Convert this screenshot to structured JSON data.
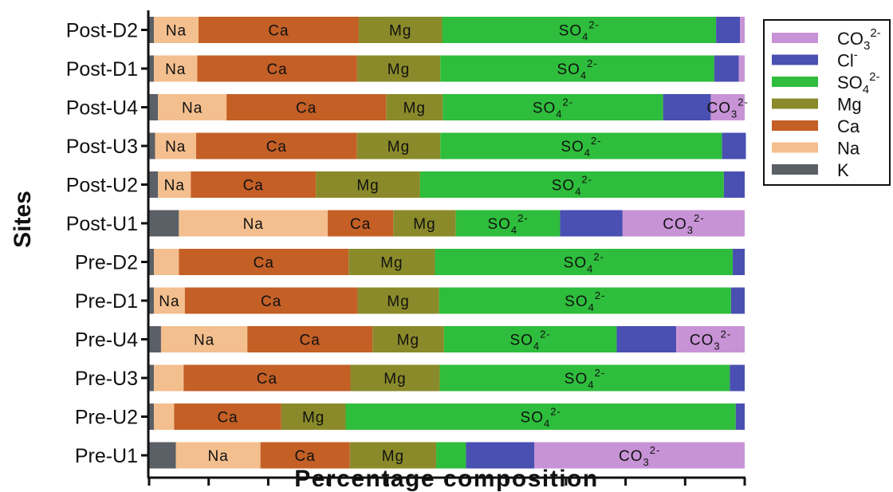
{
  "chart_data": {
    "type": "bar",
    "orientation": "horizontal",
    "stacked": true,
    "title": "",
    "xlabel": "Percentage composition",
    "ylabel": "Sites",
    "xlim": [
      0,
      100
    ],
    "xticks": [
      "0",
      "10",
      "20",
      "30",
      "40",
      "50",
      "60",
      "70",
      "80",
      "90",
      "100"
    ],
    "grid": false,
    "legend_position": "top-right",
    "categories": [
      "Post-D2",
      "Post-D1",
      "Post-U4",
      "Post-U3",
      "Post-U2",
      "Post-U1",
      "Pre-D2",
      "Pre-D1",
      "Pre-U4",
      "Pre-U3",
      "Pre-U2",
      "Pre-U1"
    ],
    "series": [
      {
        "key": "K",
        "name": "K",
        "color": "#5b5f66",
        "values": [
          0.8,
          0.8,
          1.5,
          1.0,
          1.5,
          5.0,
          0.8,
          0.8,
          2.0,
          0.8,
          0.8,
          4.5
        ]
      },
      {
        "key": "Na",
        "name": "Na",
        "color": "#f4bf8e",
        "values": [
          7.5,
          7.3,
          11.5,
          6.9,
          5.5,
          25.0,
          4.2,
          5.2,
          14.5,
          5.0,
          3.4,
          14.2
        ]
      },
      {
        "key": "Ca",
        "name": "Ca",
        "color": "#c45f26",
        "values": [
          26.9,
          26.8,
          26.8,
          27.0,
          21.0,
          11.0,
          28.5,
          29.0,
          21.0,
          28.0,
          18.0,
          15.0
        ]
      },
      {
        "key": "Mg",
        "name": "Mg",
        "color": "#8a8a2a",
        "values": [
          14.0,
          14.0,
          9.5,
          14.0,
          17.5,
          10.5,
          14.5,
          13.7,
          12.0,
          15.0,
          10.8,
          14.5
        ]
      },
      {
        "key": "SO4",
        "name": "SO42-",
        "color": "#2ebd3c",
        "values": [
          46.0,
          46.0,
          37.0,
          47.3,
          51.0,
          17.5,
          50.0,
          49.0,
          29.0,
          48.7,
          65.5,
          5.0
        ]
      },
      {
        "key": "Cl",
        "name": "Cl-",
        "color": "#4a4fb2",
        "values": [
          4.0,
          4.1,
          8.0,
          4.0,
          3.5,
          10.5,
          2.0,
          2.3,
          10.0,
          2.5,
          1.5,
          11.5
        ]
      },
      {
        "key": "CO3",
        "name": "CO32-",
        "color": "#c893d6",
        "values": [
          0.8,
          1.0,
          5.7,
          0,
          0,
          20.5,
          0,
          0,
          11.5,
          0,
          0,
          35.3
        ]
      }
    ],
    "segment_labels": {
      "Na": "Na",
      "Ca": "Ca",
      "Mg": "Mg",
      "SO4": {
        "base": "SO",
        "sub": "4",
        "sup": "2-"
      },
      "CO3": {
        "base": "CO",
        "sub": "3",
        "sup": "2-"
      }
    },
    "legend": [
      {
        "key": "CO3",
        "base": "CO",
        "sub": "3",
        "sup": "2-"
      },
      {
        "key": "Cl",
        "base": "Cl",
        "sub": "",
        "sup": "-"
      },
      {
        "key": "SO4",
        "base": "SO",
        "sub": "4",
        "sup": "2-"
      },
      {
        "key": "Mg",
        "base": "Mg",
        "sub": "",
        "sup": ""
      },
      {
        "key": "Ca",
        "base": "Ca",
        "sub": "",
        "sup": ""
      },
      {
        "key": "Na",
        "base": "Na",
        "sub": "",
        "sup": ""
      },
      {
        "key": "K",
        "base": "K",
        "sub": "",
        "sup": ""
      }
    ]
  }
}
